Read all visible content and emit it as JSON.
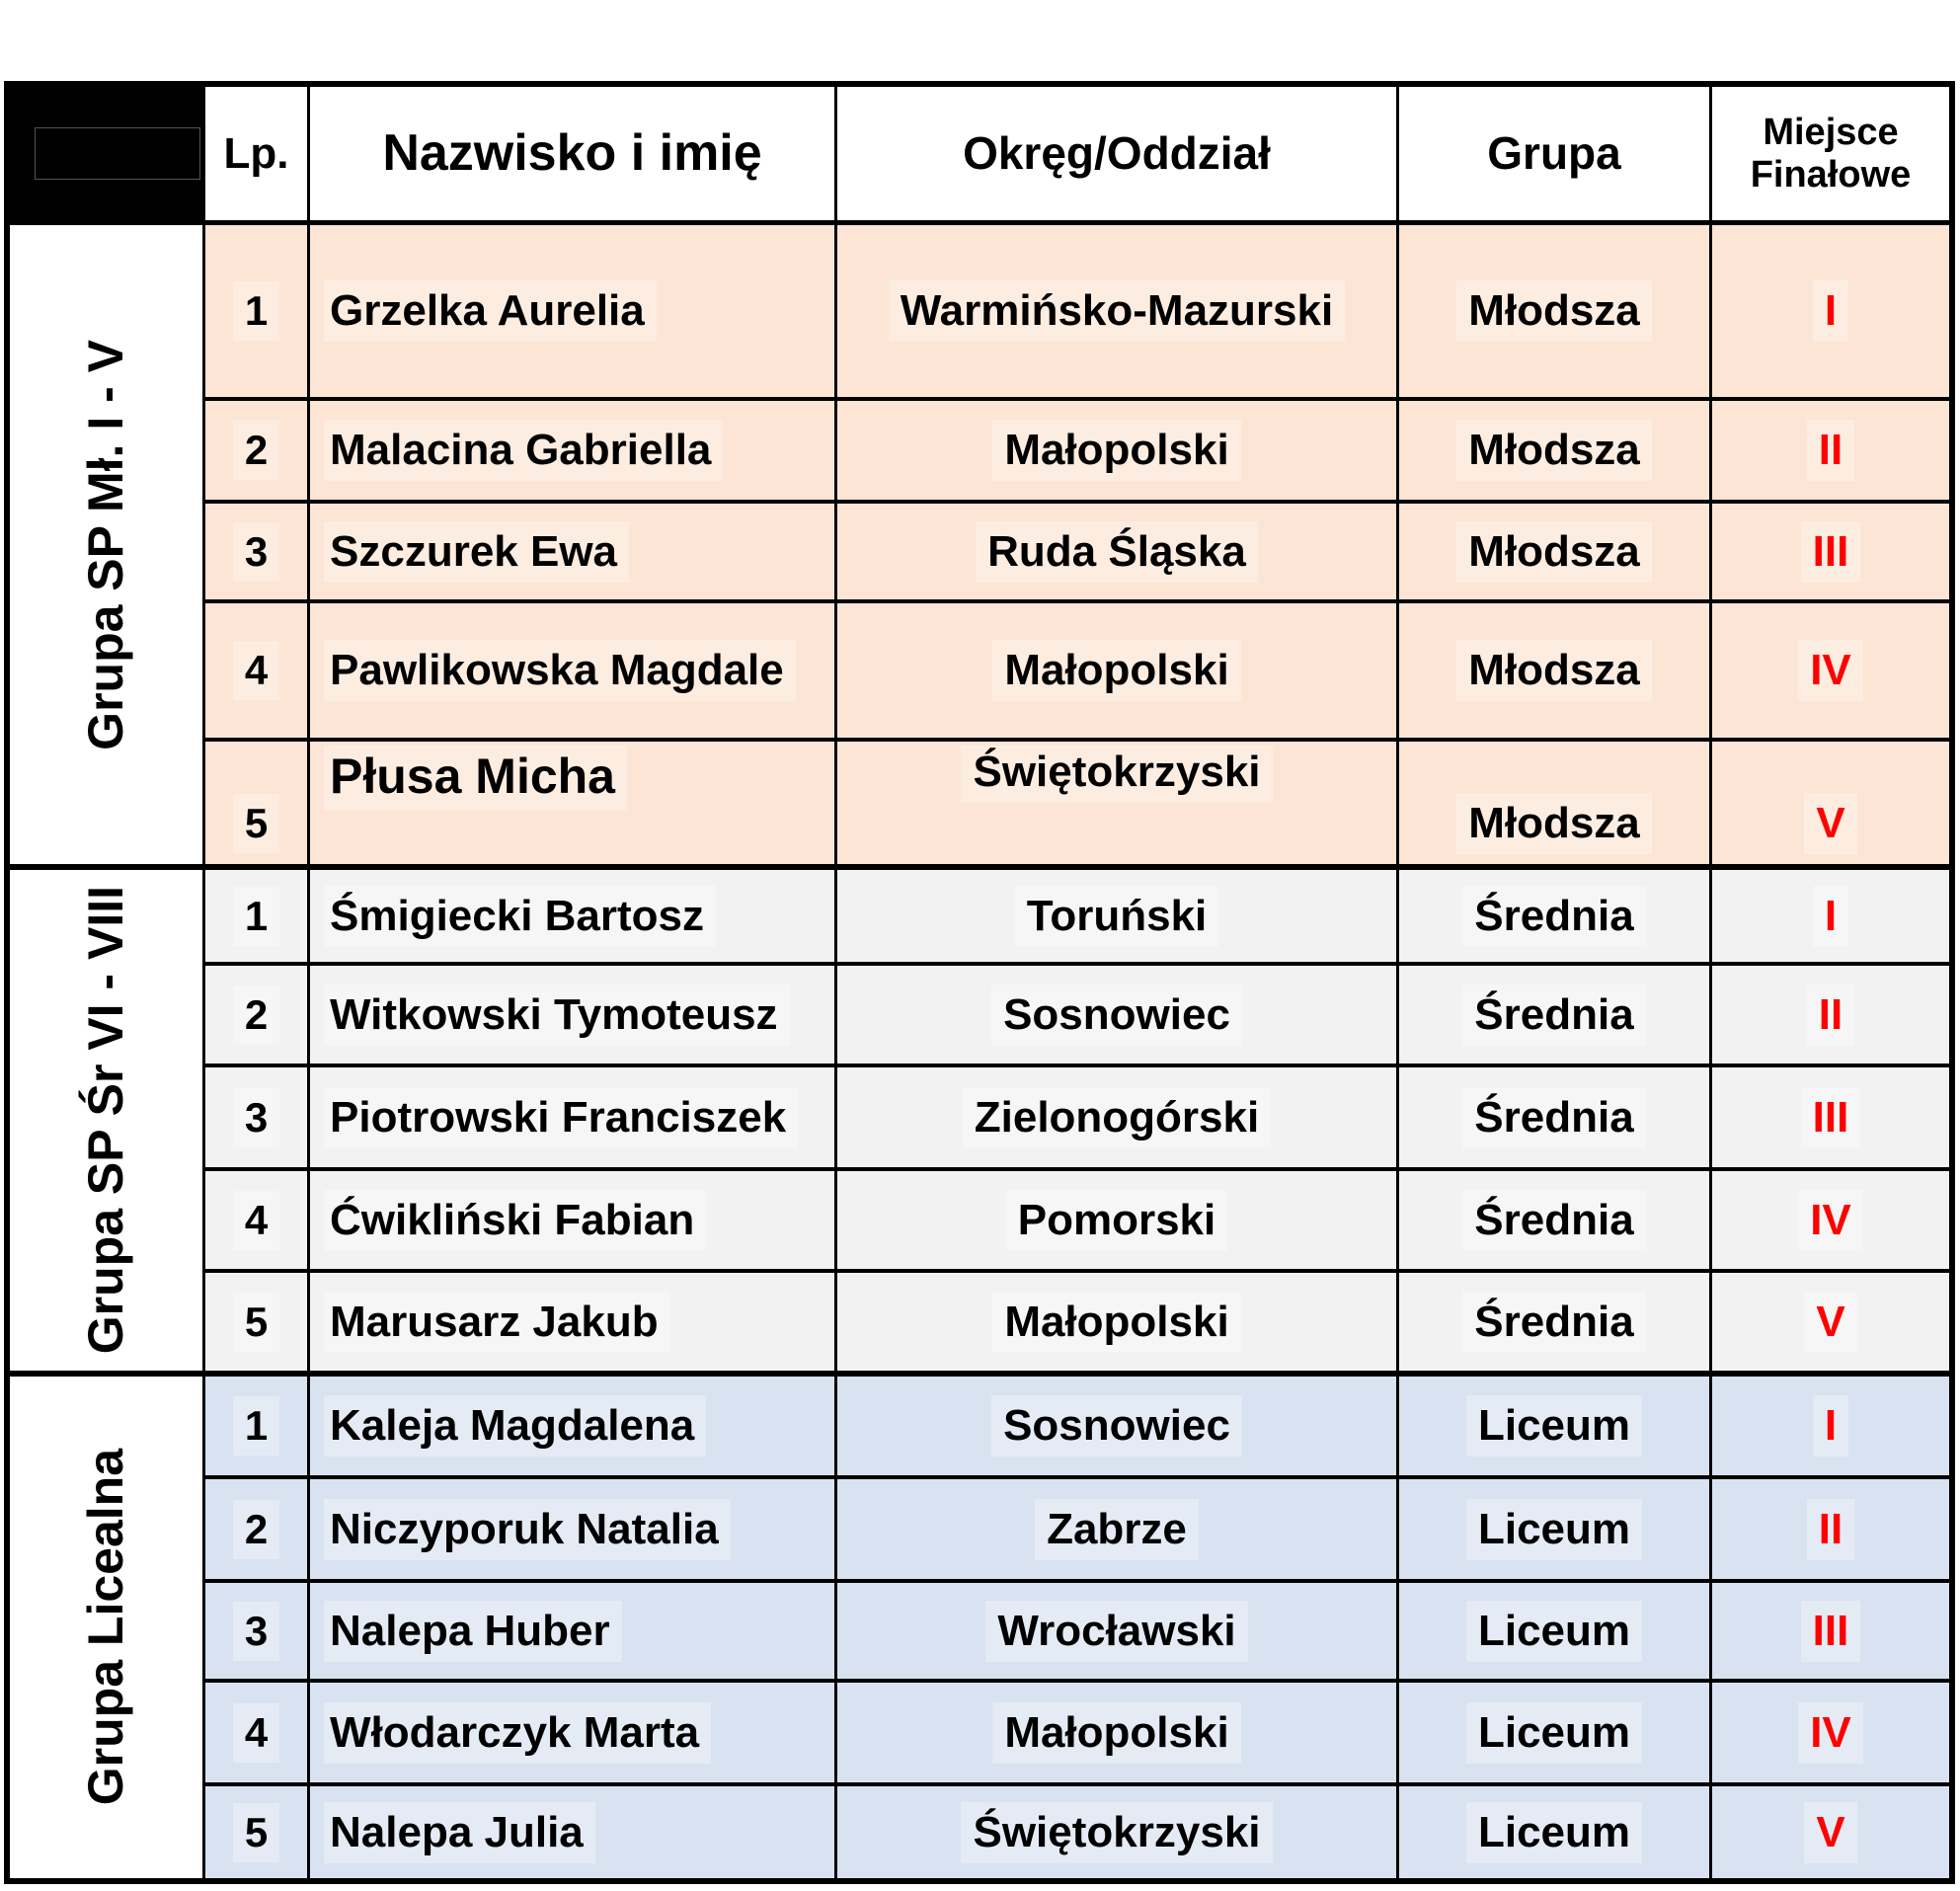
{
  "header": {
    "lp": "Lp.",
    "name": "Nazwisko i imię",
    "region": "Okręg/Oddział",
    "group": "Grupa",
    "place": "Miejsce Finałowe"
  },
  "groups": [
    {
      "label": "Grupa SP Mł. I - V",
      "bg": "#FCE5D5",
      "rows": [
        {
          "lp": "1",
          "name": "Grzelka Aurelia",
          "region": "Warmińsko-Mazurski",
          "group": "Młodsza",
          "place": "I"
        },
        {
          "lp": "2",
          "name": "Malacina Gabriella",
          "region": "Małopolski",
          "group": "Młodsza",
          "place": "II"
        },
        {
          "lp": "3",
          "name": "Szczurek Ewa",
          "region": "Ruda Śląska",
          "group": "Młodsza",
          "place": "III"
        },
        {
          "lp": "4",
          "name": "Pawlikowska Magdale",
          "region": "Małopolski",
          "group": "Młodsza",
          "place": "IV"
        },
        {
          "lp": "5",
          "name": "Płusa Micha",
          "region": "Świętokrzyski",
          "group": "Młodsza",
          "place": "V"
        }
      ]
    },
    {
      "label": "Grupa SP Śr VI - VIII",
      "bg": "#F2F2F2",
      "rows": [
        {
          "lp": "1",
          "name": "Śmigiecki Bartosz",
          "region": "Toruński",
          "group": "Średnia",
          "place": "I"
        },
        {
          "lp": "2",
          "name": "Witkowski Tymoteusz",
          "region": "Sosnowiec",
          "group": "Średnia",
          "place": "II"
        },
        {
          "lp": "3",
          "name": "Piotrowski Franciszek",
          "region": "Zielonogórski",
          "group": "Średnia",
          "place": "III"
        },
        {
          "lp": "4",
          "name": "Ćwikliński Fabian",
          "region": "Pomorski",
          "group": "Średnia",
          "place": "IV"
        },
        {
          "lp": "5",
          "name": "Marusarz Jakub",
          "region": "Małopolski",
          "group": "Średnia",
          "place": "V"
        }
      ]
    },
    {
      "label": "Grupa Licealna",
      "bg": "#D9E2F0",
      "rows": [
        {
          "lp": "1",
          "name": "Kaleja Magdalena",
          "region": "Sosnowiec",
          "group": "Liceum",
          "place": "I"
        },
        {
          "lp": "2",
          "name": "Niczyporuk Natalia",
          "region": "Zabrze",
          "group": "Liceum",
          "place": "II"
        },
        {
          "lp": "3",
          "name": "Nalepa Huber",
          "region": "Wrocławski",
          "group": "Liceum",
          "place": "III"
        },
        {
          "lp": "4",
          "name": "Włodarczyk Marta",
          "region": "Małopolski",
          "group": "Liceum",
          "place": "IV"
        },
        {
          "lp": "5",
          "name": "Nalepa Julia",
          "region": "Świętokrzyski",
          "group": "Liceum",
          "place": "V"
        }
      ]
    }
  ],
  "colors": {
    "place_red": "#FF0000",
    "border": "#000000",
    "header_corner_bg": "#000000",
    "group1_bg": "#FCE5D5",
    "group2_bg": "#F2F2F2",
    "group3_bg": "#D9E2F0"
  }
}
